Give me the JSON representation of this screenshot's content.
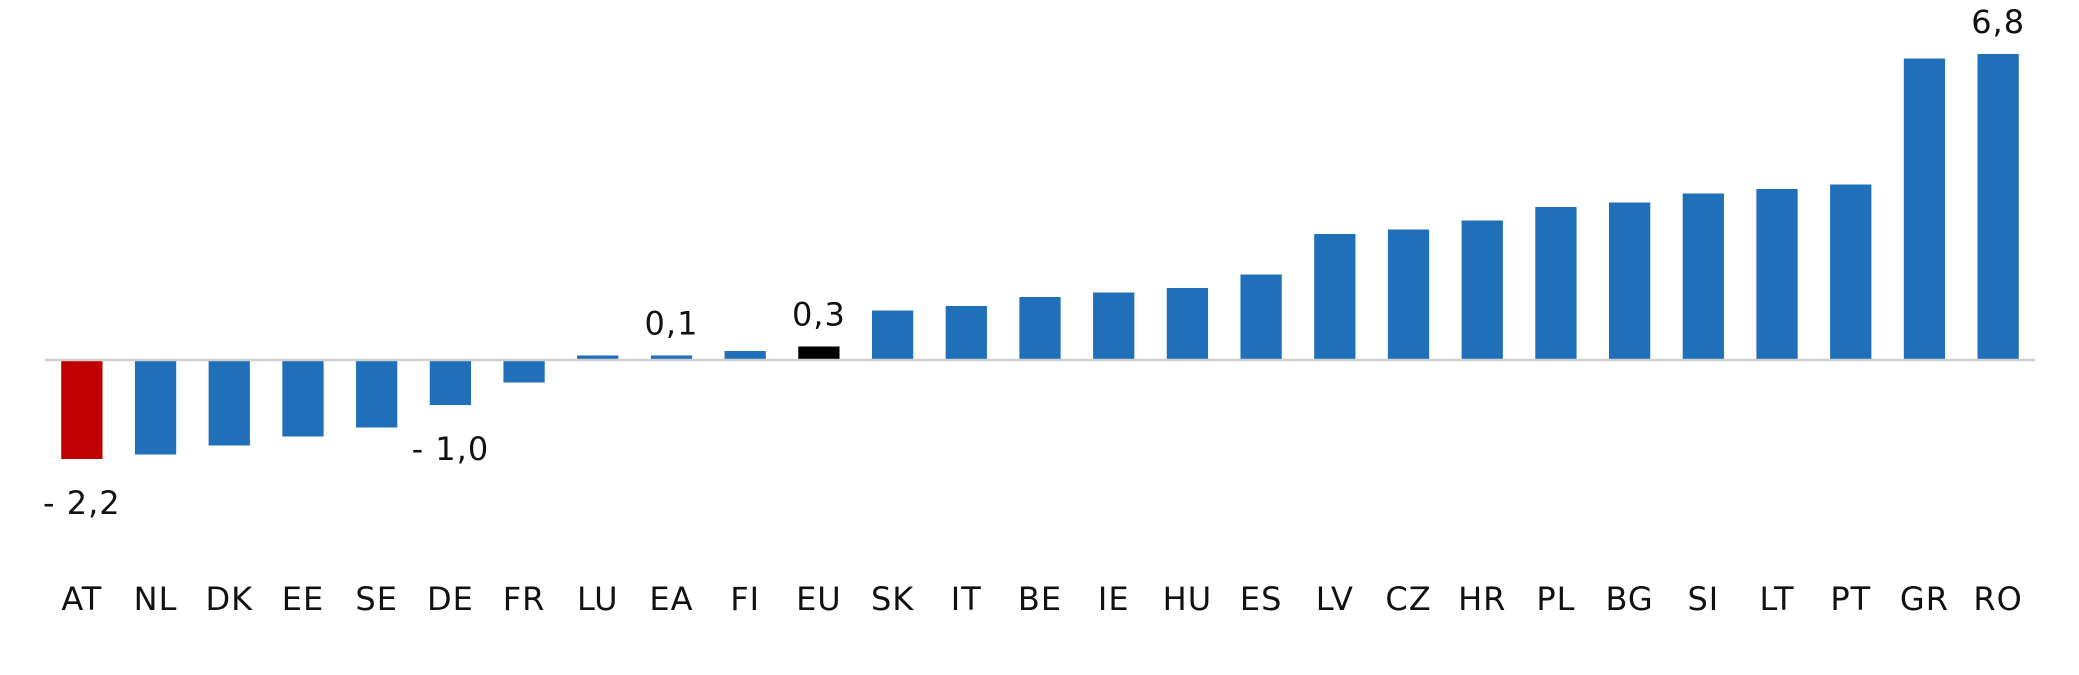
{
  "chart_data": {
    "type": "bar",
    "categories": [
      "AT",
      "NL",
      "DK",
      "EE",
      "SE",
      "DE",
      "FR",
      "LU",
      "EA",
      "FI",
      "EU",
      "SK",
      "IT",
      "BE",
      "IE",
      "HU",
      "ES",
      "LV",
      "CZ",
      "HR",
      "PL",
      "BG",
      "SI",
      "LT",
      "PT",
      "GR",
      "RO"
    ],
    "values": [
      -2.2,
      -2.1,
      -1.9,
      -1.7,
      -1.5,
      -1.0,
      -0.5,
      0.1,
      0.1,
      0.2,
      0.3,
      1.1,
      1.2,
      1.4,
      1.5,
      1.6,
      1.9,
      2.8,
      2.9,
      3.1,
      3.4,
      3.5,
      3.7,
      3.8,
      3.9,
      6.7,
      6.8
    ],
    "value_labels": [
      "- 2,2",
      null,
      null,
      null,
      null,
      "- 1,0",
      null,
      null,
      "0,1",
      null,
      "0,3",
      null,
      null,
      null,
      null,
      null,
      null,
      null,
      null,
      null,
      null,
      null,
      null,
      null,
      null,
      null,
      "6,8"
    ],
    "colors": [
      "#c00000",
      "#1f70b8",
      "#1f70b8",
      "#1f70b8",
      "#1f70b8",
      "#1f70b8",
      "#1f70b8",
      "#1f70b8",
      "#1f70b8",
      "#1f70b8",
      "#000000",
      "#1f70b8",
      "#1f70b8",
      "#1f70b8",
      "#1f70b8",
      "#1f70b8",
      "#1f70b8",
      "#1f70b8",
      "#1f70b8",
      "#1f70b8",
      "#1f70b8",
      "#1f70b8",
      "#1f70b8",
      "#1f70b8",
      "#1f70b8",
      "#1f70b8",
      "#1f70b8"
    ],
    "ylim": [
      -7,
      8
    ]
  }
}
